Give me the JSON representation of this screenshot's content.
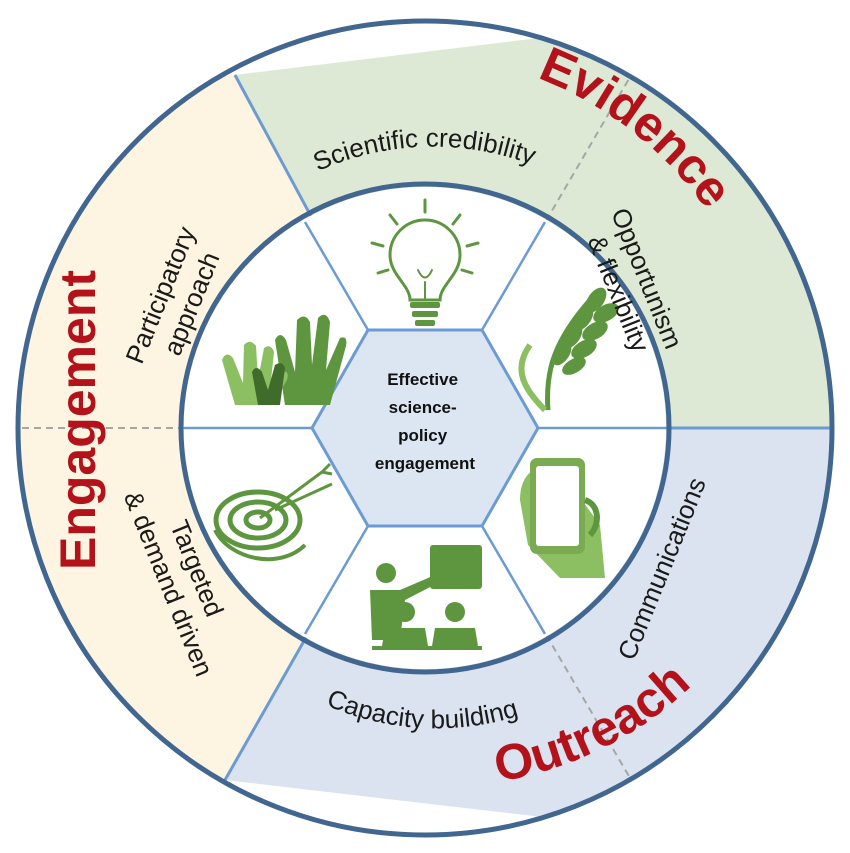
{
  "diagram": {
    "center": {
      "lines": [
        "Effective",
        "science-",
        "policy",
        "engagement"
      ]
    },
    "pillars": {
      "evidence": "Evidence",
      "engagement": "Engagement",
      "outreach": "Outreach"
    },
    "segments": {
      "scientific_credibility": "Scientific credibility",
      "opportunism": [
        "Opportunism",
        "& flexibility"
      ],
      "communications": "Communications",
      "capacity_building": "Capacity building",
      "targeted": [
        "Targeted",
        "& demand driven"
      ],
      "participatory": [
        "Participatory",
        "approach"
      ]
    },
    "icons": [
      "lightbulb-icon",
      "wheat-icon",
      "smartphone-icon",
      "presentation-icon",
      "target-icon",
      "raised-hands-icon"
    ],
    "colors": {
      "evidence_bg": "#dde9d4",
      "engagement_bg": "#fdf4e2",
      "outreach_bg": "#dbe3f1",
      "ring": "#41668f",
      "divider": "#6b9bd2",
      "pillar_text": "#b3121a",
      "icon_green": "#5e9640",
      "hexagon": "#dce6f3"
    }
  }
}
